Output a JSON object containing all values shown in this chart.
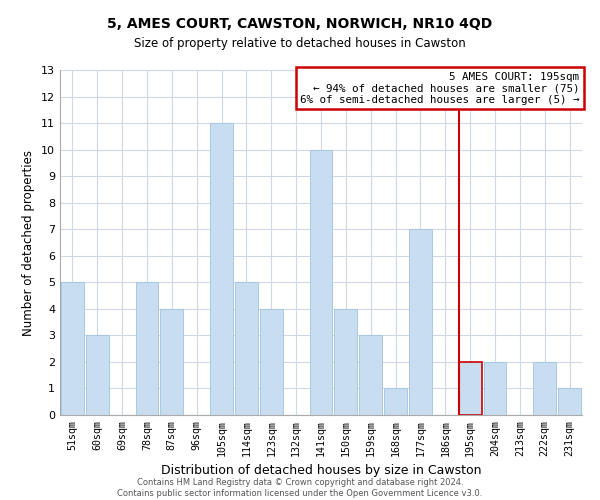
{
  "title": "5, AMES COURT, CAWSTON, NORWICH, NR10 4QD",
  "subtitle": "Size of property relative to detached houses in Cawston",
  "xlabel": "Distribution of detached houses by size in Cawston",
  "ylabel": "Number of detached properties",
  "bar_labels": [
    "51sqm",
    "60sqm",
    "69sqm",
    "78sqm",
    "87sqm",
    "96sqm",
    "105sqm",
    "114sqm",
    "123sqm",
    "132sqm",
    "141sqm",
    "150sqm",
    "159sqm",
    "168sqm",
    "177sqm",
    "186sqm",
    "195sqm",
    "204sqm",
    "213sqm",
    "222sqm",
    "231sqm"
  ],
  "bar_values": [
    5,
    3,
    0,
    5,
    4,
    0,
    11,
    5,
    4,
    0,
    10,
    4,
    3,
    1,
    7,
    0,
    2,
    2,
    0,
    2,
    1
  ],
  "bar_color": "#c8ddf0",
  "highlight_bar_index": 16,
  "highlight_bar_edge_color": "#cc0000",
  "normal_bar_edge_color": "#a0c4e0",
  "ylim": [
    0,
    13
  ],
  "yticks": [
    0,
    1,
    2,
    3,
    4,
    5,
    6,
    7,
    8,
    9,
    10,
    11,
    12,
    13
  ],
  "annotation_text_line1": "5 AMES COURT: 195sqm",
  "annotation_text_line2": "← 94% of detached houses are smaller (75)",
  "annotation_text_line3": "6% of semi-detached houses are larger (5) →",
  "footer_line1": "Contains HM Land Registry data © Crown copyright and database right 2024.",
  "footer_line2": "Contains public sector information licensed under the Open Government Licence v3.0.",
  "background_color": "#ffffff",
  "grid_color": "#d0d8e8"
}
